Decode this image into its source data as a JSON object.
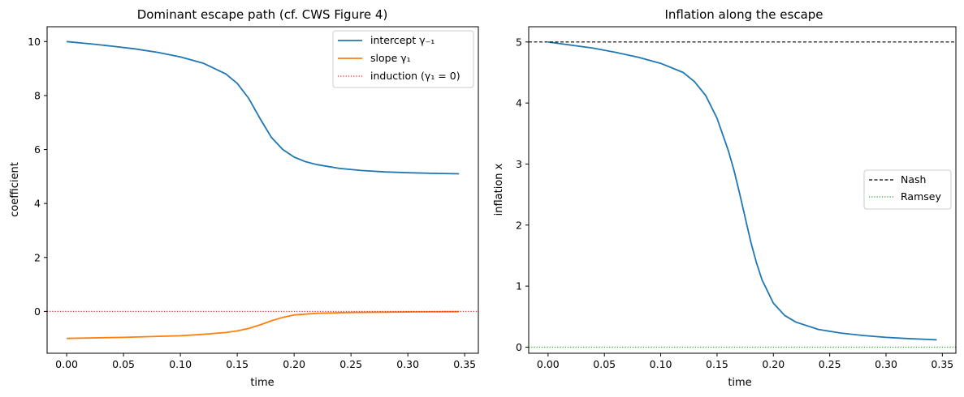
{
  "chart_data": [
    {
      "type": "line",
      "title": "Dominant escape path (cf. CWS Figure 4)",
      "xlabel": "time",
      "ylabel": "coefficient",
      "xlim": [
        -0.0172,
        0.362
      ],
      "ylim": [
        -1.55,
        10.55
      ],
      "xticks": [
        "0.00",
        "0.05",
        "0.10",
        "0.15",
        "0.20",
        "0.25",
        "0.30",
        "0.35"
      ],
      "xtick_values": [
        0,
        0.05,
        0.1,
        0.15,
        0.2,
        0.25,
        0.3,
        0.35
      ],
      "yticks": [
        "0",
        "2",
        "4",
        "6",
        "8",
        "10"
      ],
      "ytick_values": [
        0,
        2,
        4,
        6,
        8,
        10
      ],
      "grid": false,
      "legend_position": "top-right",
      "series": [
        {
          "name": "intercept γ₋₁",
          "color": "#1f77b4",
          "style": "solid",
          "x": [
            0.0,
            0.02,
            0.04,
            0.06,
            0.08,
            0.1,
            0.12,
            0.14,
            0.15,
            0.16,
            0.17,
            0.175,
            0.18,
            0.19,
            0.2,
            0.21,
            0.22,
            0.24,
            0.26,
            0.28,
            0.3,
            0.32,
            0.345
          ],
          "y": [
            10.0,
            9.92,
            9.83,
            9.73,
            9.6,
            9.43,
            9.2,
            8.8,
            8.45,
            7.9,
            7.15,
            6.8,
            6.45,
            6.0,
            5.72,
            5.55,
            5.44,
            5.3,
            5.22,
            5.17,
            5.14,
            5.12,
            5.1
          ]
        },
        {
          "name": "slope γ₁",
          "color": "#ff7f0e",
          "style": "solid",
          "x": [
            0.0,
            0.05,
            0.1,
            0.12,
            0.14,
            0.15,
            0.16,
            0.17,
            0.18,
            0.19,
            0.2,
            0.22,
            0.25,
            0.3,
            0.345
          ],
          "y": [
            -1.0,
            -0.96,
            -0.9,
            -0.85,
            -0.78,
            -0.72,
            -0.63,
            -0.5,
            -0.35,
            -0.22,
            -0.13,
            -0.07,
            -0.04,
            -0.02,
            -0.01
          ]
        },
        {
          "name": "induction (γ₁ = 0)",
          "color": "#d62728",
          "style": "dotted",
          "hline": 0
        }
      ]
    },
    {
      "type": "line",
      "title": "Inflation along the escape",
      "xlabel": "time",
      "ylabel": "inflation x",
      "xlim": [
        -0.0172,
        0.362
      ],
      "ylim": [
        -0.1,
        5.25
      ],
      "xticks": [
        "0.00",
        "0.05",
        "0.10",
        "0.15",
        "0.20",
        "0.25",
        "0.30",
        "0.35"
      ],
      "xtick_values": [
        0,
        0.05,
        0.1,
        0.15,
        0.2,
        0.25,
        0.3,
        0.35
      ],
      "yticks": [
        "0",
        "1",
        "2",
        "3",
        "4",
        "5"
      ],
      "ytick_values": [
        0,
        1,
        2,
        3,
        4,
        5
      ],
      "grid": false,
      "legend_position": "center-right",
      "series": [
        {
          "name": "",
          "color": "#1f77b4",
          "style": "solid",
          "x": [
            0.0,
            0.02,
            0.04,
            0.06,
            0.08,
            0.1,
            0.12,
            0.13,
            0.14,
            0.15,
            0.16,
            0.165,
            0.17,
            0.175,
            0.18,
            0.185,
            0.19,
            0.2,
            0.21,
            0.22,
            0.24,
            0.26,
            0.28,
            0.3,
            0.32,
            0.345
          ],
          "y": [
            5.0,
            4.95,
            4.9,
            4.83,
            4.75,
            4.65,
            4.5,
            4.35,
            4.12,
            3.75,
            3.22,
            2.9,
            2.52,
            2.12,
            1.72,
            1.38,
            1.1,
            0.72,
            0.52,
            0.41,
            0.29,
            0.23,
            0.19,
            0.16,
            0.14,
            0.12
          ]
        },
        {
          "name": "Nash",
          "color": "#000000",
          "style": "dashed",
          "hline": 5
        },
        {
          "name": "Ramsey",
          "color": "#2ca02c",
          "style": "dotted",
          "hline": 0
        }
      ]
    }
  ]
}
